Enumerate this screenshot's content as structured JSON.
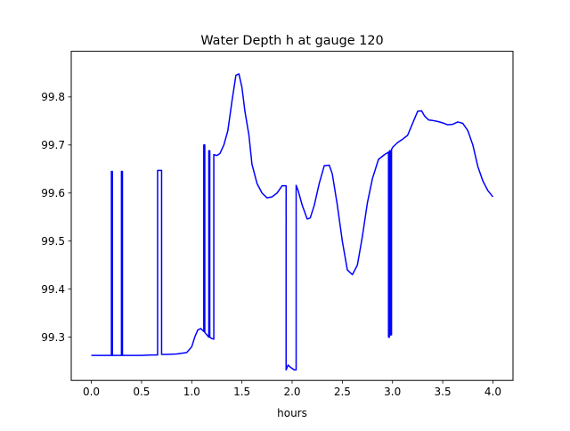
{
  "chart_data": {
    "type": "line",
    "title": "Water Depth h at gauge 120",
    "xlabel": "hours",
    "ylabel": "",
    "xlim": [
      -0.2,
      4.2
    ],
    "ylim": [
      99.21,
      99.895
    ],
    "grid": false,
    "x_ticks": [
      0.0,
      0.5,
      1.0,
      1.5,
      2.0,
      2.5,
      3.0,
      3.5,
      4.0
    ],
    "x_tick_labels": [
      "0.0",
      "0.5",
      "1.0",
      "1.5",
      "2.0",
      "2.5",
      "3.0",
      "3.5",
      "4.0"
    ],
    "y_ticks": [
      99.3,
      99.4,
      99.5,
      99.6,
      99.7,
      99.8
    ],
    "y_tick_labels": [
      "99.3",
      "99.4",
      "99.5",
      "99.6",
      "99.7",
      "99.8"
    ],
    "series": [
      {
        "color": "#0000ff",
        "x": [
          0.0,
          0.2,
          0.2,
          0.21,
          0.21,
          0.22,
          0.22,
          0.3,
          0.3,
          0.31,
          0.31,
          0.32,
          0.32,
          0.4,
          0.5,
          0.6,
          0.66,
          0.66,
          0.7,
          0.7,
          0.75,
          0.85,
          0.95,
          1.0,
          1.03,
          1.06,
          1.09,
          1.12,
          1.12,
          1.13,
          1.13,
          1.15,
          1.17,
          1.17,
          1.18,
          1.18,
          1.2,
          1.22,
          1.22,
          1.25,
          1.28,
          1.32,
          1.36,
          1.4,
          1.44,
          1.47,
          1.5,
          1.53,
          1.57,
          1.6,
          1.65,
          1.7,
          1.75,
          1.8,
          1.85,
          1.9,
          1.94,
          1.94,
          1.96,
          1.98,
          2.02,
          2.04,
          2.04,
          2.06,
          2.1,
          2.15,
          2.18,
          2.22,
          2.27,
          2.32,
          2.37,
          2.4,
          2.45,
          2.5,
          2.55,
          2.6,
          2.65,
          2.7,
          2.75,
          2.8,
          2.86,
          2.92,
          2.96,
          2.96,
          2.97,
          2.97,
          2.98,
          2.98,
          2.99,
          2.99,
          3.0,
          3.05,
          3.1,
          3.15,
          3.2,
          3.25,
          3.29,
          3.32,
          3.36,
          3.4,
          3.45,
          3.5,
          3.55,
          3.6,
          3.65,
          3.7,
          3.75,
          3.8,
          3.85,
          3.9,
          3.95,
          4.0
        ],
        "y": [
          99.262,
          99.262,
          99.645,
          99.645,
          99.262,
          99.262,
          99.262,
          99.262,
          99.645,
          99.645,
          99.262,
          99.262,
          99.262,
          99.262,
          99.262,
          99.263,
          99.263,
          99.647,
          99.647,
          99.264,
          99.264,
          99.265,
          99.268,
          99.28,
          99.3,
          99.315,
          99.318,
          99.312,
          99.7,
          99.7,
          99.31,
          99.305,
          99.3,
          99.688,
          99.688,
          99.3,
          99.297,
          99.296,
          99.68,
          99.678,
          99.682,
          99.7,
          99.73,
          99.79,
          99.845,
          99.848,
          99.82,
          99.77,
          99.72,
          99.66,
          99.62,
          99.6,
          99.59,
          99.592,
          99.6,
          99.615,
          99.615,
          99.232,
          99.242,
          99.238,
          99.232,
          99.232,
          99.616,
          99.605,
          99.575,
          99.546,
          99.548,
          99.574,
          99.62,
          99.657,
          99.658,
          99.64,
          99.575,
          99.5,
          99.44,
          99.43,
          99.45,
          99.51,
          99.58,
          99.63,
          99.67,
          99.68,
          99.685,
          99.3,
          99.3,
          99.688,
          99.688,
          99.305,
          99.305,
          99.69,
          99.695,
          99.705,
          99.712,
          99.72,
          99.745,
          99.77,
          99.771,
          99.76,
          99.752,
          99.751,
          99.749,
          99.746,
          99.742,
          99.743,
          99.748,
          99.745,
          99.73,
          99.7,
          99.655,
          99.625,
          99.605,
          99.592
        ]
      }
    ]
  }
}
